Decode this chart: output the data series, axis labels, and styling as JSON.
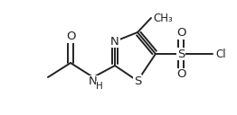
{
  "bg_color": "#ffffff",
  "line_color": "#222222",
  "line_width": 1.4,
  "font_size": 8.5,
  "font_color": "#222222",
  "figsize": [
    2.62,
    1.28
  ],
  "dpi": 100,
  "xlim": [
    0,
    262
  ],
  "ylim": [
    0,
    128
  ]
}
